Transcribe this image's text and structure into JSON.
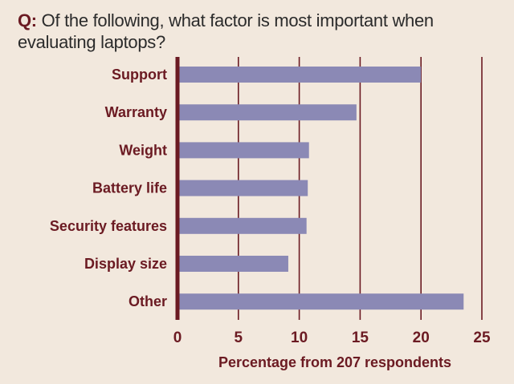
{
  "question": {
    "prefix": "Q:",
    "text": "Of the following, what factor is most important when evaluating laptops?"
  },
  "colors": {
    "background": "#f2e8dd",
    "bar": "#8b89b5",
    "axis": "#6b1a22",
    "label": "#6b1a22"
  },
  "chart_data": {
    "type": "bar",
    "orientation": "horizontal",
    "categories": [
      "Support",
      "Warranty",
      "Weight",
      "Battery life",
      "Security features",
      "Display size",
      "Other"
    ],
    "values": [
      20,
      14.7,
      10.8,
      10.7,
      10.6,
      9.1,
      23.5
    ],
    "xlabel": "Percentage from 207 respondents",
    "xlim": [
      0,
      25
    ],
    "xticks": [
      0,
      5,
      10,
      15,
      20,
      25
    ],
    "grid": true
  }
}
